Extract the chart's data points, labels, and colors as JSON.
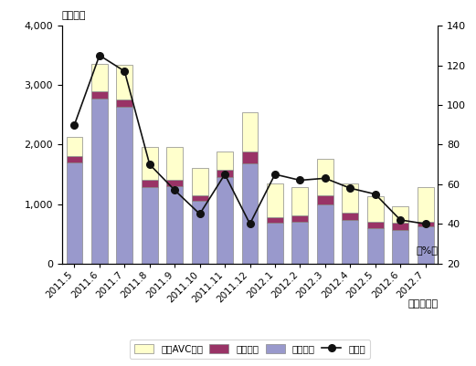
{
  "categories": [
    "2011.5",
    "2011.6",
    "2011.7",
    "2011.8",
    "2011.9",
    "2011.10",
    "2011.11",
    "2011.12",
    "2012.1",
    "2012.2",
    "2012.3",
    "2012.4",
    "2012.5",
    "2012.6",
    "2012.7"
  ],
  "eizo": [
    1700,
    2770,
    2640,
    1280,
    1300,
    1060,
    1460,
    1690,
    680,
    700,
    1000,
    730,
    600,
    560,
    620
  ],
  "onsei": [
    100,
    130,
    120,
    120,
    110,
    90,
    120,
    200,
    100,
    110,
    140,
    120,
    100,
    120,
    80
  ],
  "car_avc": [
    330,
    450,
    580,
    560,
    550,
    460,
    310,
    660,
    560,
    480,
    620,
    490,
    430,
    280,
    590
  ],
  "yoy": [
    90,
    125,
    117,
    70,
    57,
    45,
    65,
    40,
    65,
    62,
    63,
    58,
    55,
    42,
    40
  ],
  "bar_color_eizo": "#9999cc",
  "bar_color_onsei": "#993366",
  "bar_color_car": "#ffffcc",
  "line_color": "#111111",
  "ylim_left": [
    0,
    4000
  ],
  "ylim_right": [
    20,
    140
  ],
  "yticks_left": [
    0,
    1000,
    2000,
    3000,
    4000
  ],
  "yticks_right": [
    20,
    40,
    60,
    80,
    100,
    120,
    140
  ],
  "ylabel_left": "（億円）",
  "ylabel_right": "（%）",
  "xlabel": "（年・月）",
  "legend_car": "カーAVC機器",
  "legend_onsei": "音声機器",
  "legend_eizo": "映像機器",
  "legend_yoy": "前年比"
}
